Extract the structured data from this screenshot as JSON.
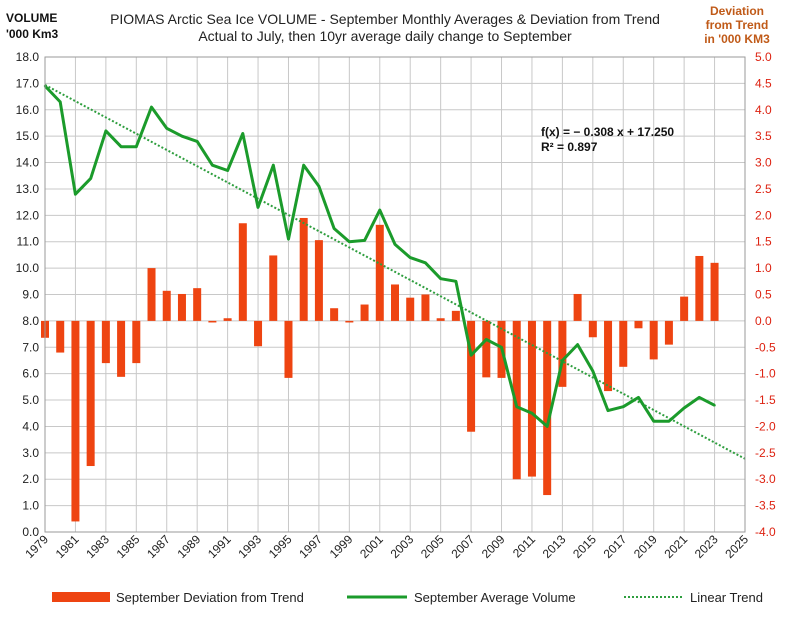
{
  "chart_data": {
    "type": "bar+line",
    "title": "PIOMAS Arctic Sea Ice VOLUME - September Monthly Averages & Deviation from Trend",
    "subtitle": "Actual to July, then 10yr average daily change to September",
    "ylabel_left_line1": "VOLUME",
    "ylabel_left_line2": "'000 Km3",
    "ylabel_right_line1": "Deviation",
    "ylabel_right_line2": "from Trend",
    "ylabel_right_line3": "in '000 KM3",
    "left_axis": {
      "min": 0,
      "max": 18,
      "step": 1,
      "decimals": 1
    },
    "right_axis": {
      "min": -4,
      "max": 5,
      "step": 0.5,
      "decimals": 1
    },
    "x_axis": {
      "min": 1979,
      "max": 2025,
      "step": 2
    },
    "equation_line1": "f(x) = − 0.308  x + 17.250",
    "equation_line2": "R² = 0.897",
    "trend": {
      "slope": -0.308,
      "intercept": 17.25,
      "x_start": 1979,
      "x_end": 2025
    },
    "colors": {
      "bars": "#ee4411",
      "line": "#1b9b2b",
      "trend": "#2e9e3e",
      "right_axis": "#dd2211",
      "right_title": "#c05a18",
      "grid": "#c8c8c8"
    },
    "legend": {
      "bars": "September Deviation from Trend",
      "line": "September Average Volume",
      "trend": "Linear Trend"
    },
    "series": [
      {
        "name": "September Deviation from Trend",
        "kind": "bar",
        "axis": "right",
        "x": [
          1979,
          1980,
          1981,
          1982,
          1983,
          1984,
          1985,
          1986,
          1987,
          1988,
          1989,
          1990,
          1991,
          1992,
          1993,
          1994,
          1995,
          1996,
          1997,
          1998,
          1999,
          2000,
          2001,
          2002,
          2003,
          2004,
          2005,
          2006,
          2007,
          2008,
          2009,
          2010,
          2011,
          2012,
          2013,
          2014,
          2015,
          2016,
          2017,
          2018,
          2019,
          2020,
          2021,
          2022,
          2023
        ],
        "values": [
          -0.32,
          -0.6,
          -3.8,
          -2.75,
          -0.8,
          -1.06,
          -0.8,
          1.0,
          0.57,
          0.51,
          0.62,
          -0.03,
          0.05,
          1.85,
          -0.48,
          1.24,
          -1.08,
          1.95,
          1.53,
          0.24,
          -0.03,
          0.31,
          1.82,
          0.69,
          0.44,
          0.5,
          0.05,
          0.19,
          -2.1,
          -1.07,
          -1.08,
          -3.0,
          -2.95,
          -3.3,
          -1.25,
          0.51,
          -0.31,
          -1.33,
          -0.87,
          -0.14,
          -0.73,
          -0.45,
          0.46,
          1.23,
          1.1
        ]
      },
      {
        "name": "September Average Volume",
        "kind": "line",
        "axis": "left",
        "x": [
          1979,
          1980,
          1981,
          1982,
          1983,
          1984,
          1985,
          1986,
          1987,
          1988,
          1989,
          1990,
          1991,
          1992,
          1993,
          1994,
          1995,
          1996,
          1997,
          1998,
          1999,
          2000,
          2001,
          2002,
          2003,
          2004,
          2005,
          2006,
          2007,
          2008,
          2009,
          2010,
          2011,
          2012,
          2013,
          2014,
          2015,
          2016,
          2017,
          2018,
          2019,
          2020,
          2021,
          2022,
          2023
        ],
        "values": [
          16.9,
          16.3,
          12.8,
          13.4,
          15.2,
          14.6,
          14.6,
          16.1,
          15.3,
          15.0,
          14.8,
          13.9,
          13.7,
          15.1,
          12.3,
          13.9,
          11.1,
          13.9,
          13.1,
          11.5,
          11.0,
          11.05,
          12.2,
          10.9,
          10.4,
          10.2,
          9.6,
          9.5,
          6.7,
          7.3,
          7.0,
          4.75,
          4.5,
          4.0,
          6.5,
          7.1,
          6.1,
          4.6,
          4.75,
          5.1,
          4.2,
          4.2,
          4.7,
          5.1,
          4.8
        ]
      }
    ]
  }
}
